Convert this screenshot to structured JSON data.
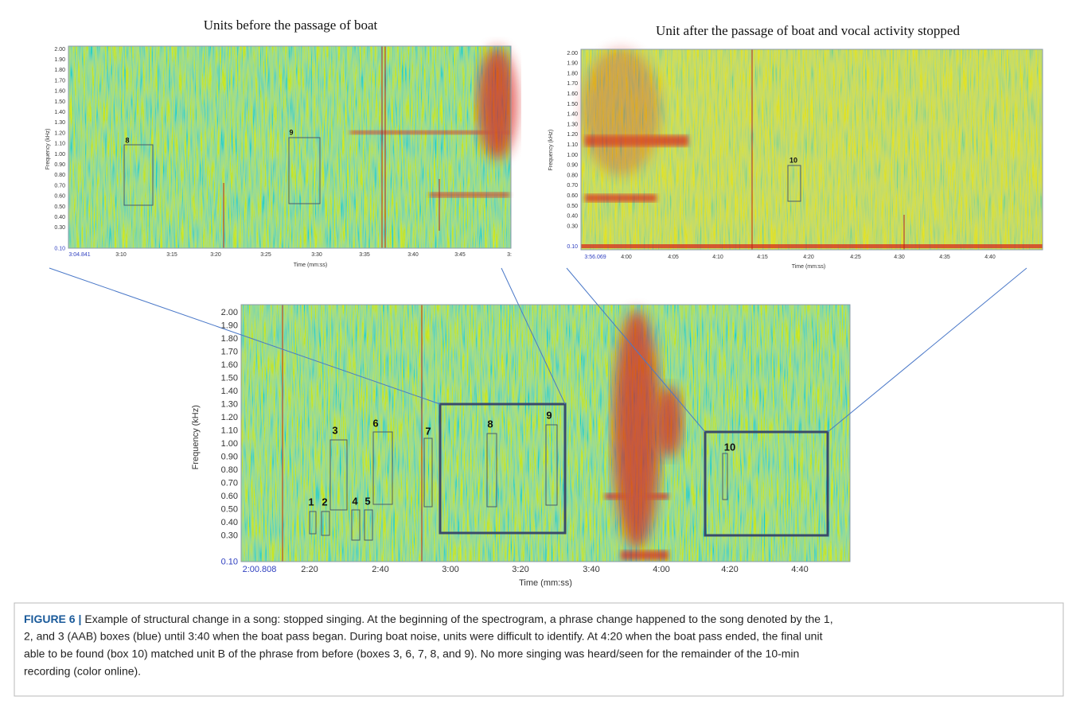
{
  "panels": [
    {
      "title": "Units before the passage of boat",
      "y_axis_label": "Frequency (kHz)",
      "x_axis_label": "Time (mm:ss)",
      "yticks": [
        "2.00",
        "1.90",
        "1.80",
        "1.70",
        "1.60",
        "1.50",
        "1.40",
        "1.30",
        "1.20",
        "1.10",
        "1.00",
        "0.90",
        "0.80",
        "0.70",
        "0.60",
        "0.50",
        "0.40",
        "0.30",
        "0.10"
      ],
      "xticks": [
        "3:04.841",
        "3:10",
        "3:15",
        "3:20",
        "3:25",
        "3:30",
        "3:35",
        "3:40",
        "3:45",
        "3:"
      ],
      "boxes": [
        "8",
        "9"
      ]
    },
    {
      "title": "Unit after the passage of boat and vocal activity stopped",
      "y_axis_label": "Frequency (kHz)",
      "x_axis_label": "Time (mm:ss)",
      "yticks": [
        "2.00",
        "1.90",
        "1.80",
        "1.70",
        "1.60",
        "1.50",
        "1.40",
        "1.30",
        "1.20",
        "1.10",
        "1.00",
        "0.90",
        "0.80",
        "0.70",
        "0.60",
        "0.50",
        "0.40",
        "0.30",
        "0.10"
      ],
      "xticks": [
        "3:56.069",
        "4:00",
        "4:05",
        "4:10",
        "4:15",
        "4:20",
        "4:25",
        "4:30",
        "4:35",
        "4:40"
      ],
      "boxes": [
        "10"
      ]
    },
    {
      "y_axis_label": "Frequency (kHz)",
      "x_axis_label": "Time (mm:ss)",
      "yticks": [
        "2.00",
        "1.90",
        "1.80",
        "1.70",
        "1.60",
        "1.50",
        "1.40",
        "1.30",
        "1.20",
        "1.10",
        "1.00",
        "0.90",
        "0.80",
        "0.70",
        "0.60",
        "0.50",
        "0.40",
        "0.30",
        "0.10"
      ],
      "xticks": [
        "2:00.808",
        "2:20",
        "2:40",
        "3:00",
        "3:20",
        "3:40",
        "4:00",
        "4:20",
        "4:40"
      ],
      "boxes": [
        "1",
        "2",
        "3",
        "4",
        "5",
        "6",
        "7",
        "8",
        "9",
        "10"
      ]
    }
  ],
  "caption": {
    "label": "FIGURE 6 |",
    "lines": [
      "Example of structural change in a song: stopped singing. At the beginning of the spectrogram, a phrase change happened to the song denoted by the 1,",
      "2, and 3 (AAB) boxes (blue) until 3:40 when the boat pass began. During boat noise, units were difficult to identify. At 4:20 when the boat pass ended, the final unit",
      "able to be found (box 10) matched unit B of the phrase from before (boxes 3, 6, 7, 8, and 9). No more singing was heard/seen for the remainder of the 10-min",
      "recording (color online)."
    ]
  }
}
